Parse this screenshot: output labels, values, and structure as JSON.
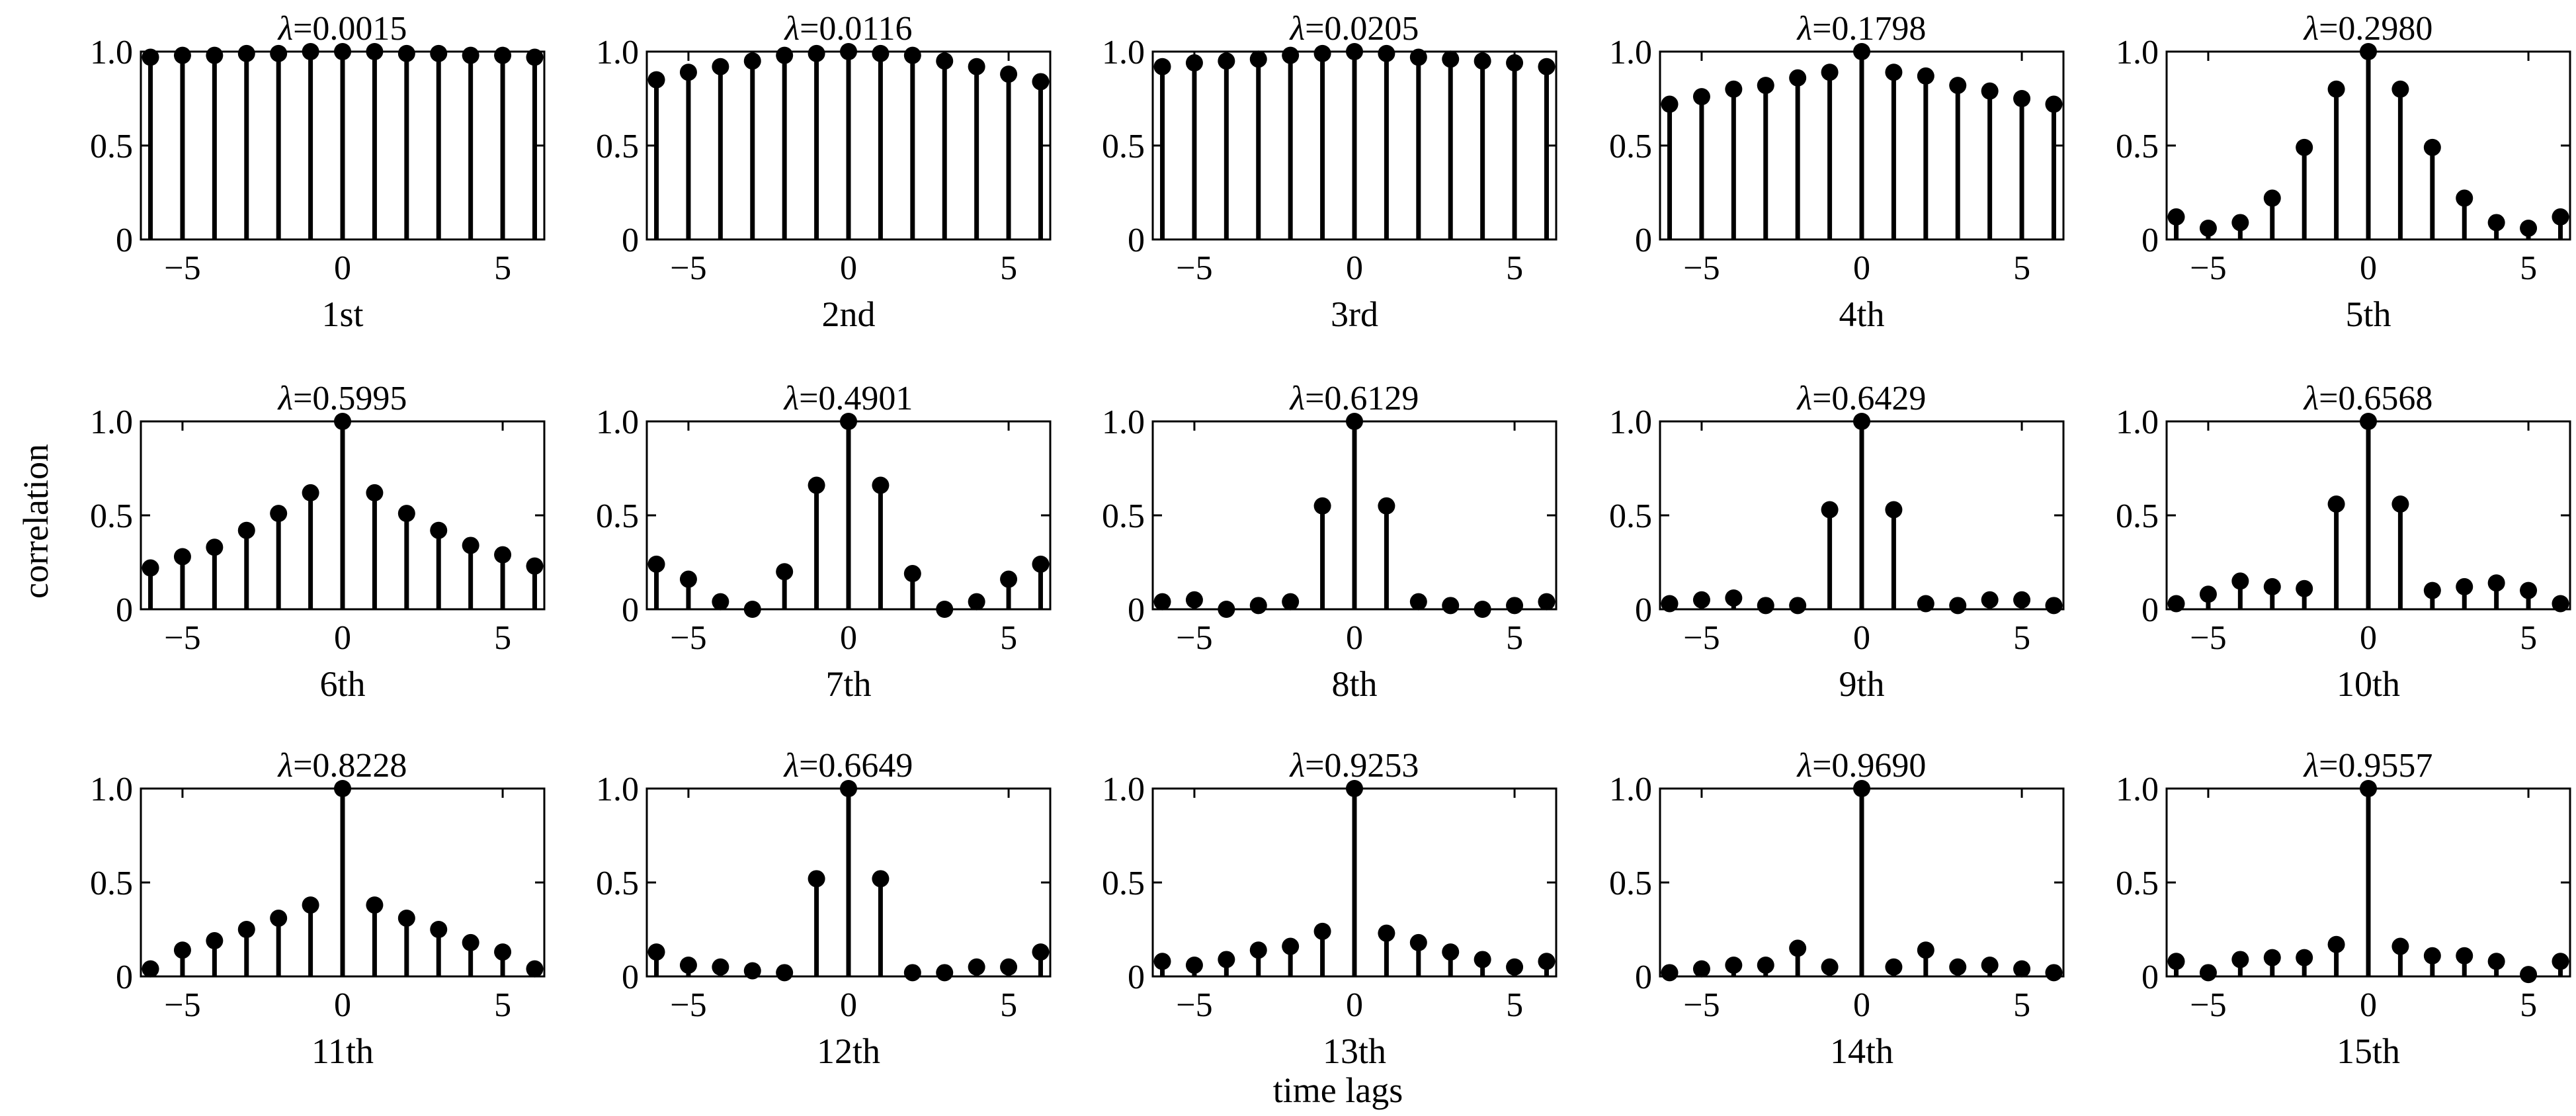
{
  "figure": {
    "ylabel": "correlation",
    "xlabel": "time lags"
  },
  "chart_data": [
    {
      "type": "stem",
      "title_symbol": "λ",
      "title_value": "=0.0015",
      "xlabel": "1st",
      "x": [
        -6,
        -5,
        -4,
        -3,
        -2,
        -1,
        0,
        1,
        2,
        3,
        4,
        5,
        6
      ],
      "values": [
        0.97,
        0.98,
        0.98,
        0.99,
        0.99,
        1.0,
        1.0,
        1.0,
        0.99,
        0.99,
        0.98,
        0.98,
        0.97
      ],
      "xlim": [
        -6.3,
        6.3
      ],
      "ylim": [
        0,
        1
      ],
      "xticks": [
        "−5",
        "0",
        "5"
      ],
      "yticks": [
        "0",
        "0.5",
        "1.0"
      ]
    },
    {
      "type": "stem",
      "title_symbol": "λ",
      "title_value": "=0.0116",
      "xlabel": "2nd",
      "x": [
        -6,
        -5,
        -4,
        -3,
        -2,
        -1,
        0,
        1,
        2,
        3,
        4,
        5,
        6
      ],
      "values": [
        0.85,
        0.89,
        0.92,
        0.95,
        0.98,
        0.99,
        1.0,
        0.99,
        0.98,
        0.95,
        0.92,
        0.88,
        0.84
      ],
      "xlim": [
        -6.3,
        6.3
      ],
      "ylim": [
        0,
        1
      ],
      "xticks": [
        "−5",
        "0",
        "5"
      ],
      "yticks": [
        "0",
        "0.5",
        "1.0"
      ]
    },
    {
      "type": "stem",
      "title_symbol": "λ",
      "title_value": "=0.0205",
      "xlabel": "3rd",
      "x": [
        -6,
        -5,
        -4,
        -3,
        -2,
        -1,
        0,
        1,
        2,
        3,
        4,
        5,
        6
      ],
      "values": [
        0.92,
        0.94,
        0.95,
        0.96,
        0.98,
        0.99,
        1.0,
        0.99,
        0.97,
        0.96,
        0.95,
        0.94,
        0.92
      ],
      "xlim": [
        -6.3,
        6.3
      ],
      "ylim": [
        0,
        1
      ],
      "xticks": [
        "−5",
        "0",
        "5"
      ],
      "yticks": [
        "0",
        "0.5",
        "1.0"
      ]
    },
    {
      "type": "stem",
      "title_symbol": "λ",
      "title_value": "=0.1798",
      "xlabel": "4th",
      "x": [
        -6,
        -5,
        -4,
        -3,
        -2,
        -1,
        0,
        1,
        2,
        3,
        4,
        5,
        6
      ],
      "values": [
        0.72,
        0.76,
        0.8,
        0.82,
        0.86,
        0.89,
        1.0,
        0.89,
        0.87,
        0.82,
        0.79,
        0.75,
        0.72
      ],
      "xlim": [
        -6.3,
        6.3
      ],
      "ylim": [
        0,
        1
      ],
      "xticks": [
        "−5",
        "0",
        "5"
      ],
      "yticks": [
        "0",
        "0.5",
        "1.0"
      ]
    },
    {
      "type": "stem",
      "title_symbol": "λ",
      "title_value": "=0.2980",
      "xlabel": "5th",
      "x": [
        -6,
        -5,
        -4,
        -3,
        -2,
        -1,
        0,
        1,
        2,
        3,
        4,
        5,
        6
      ],
      "values": [
        0.12,
        0.06,
        0.09,
        0.22,
        0.49,
        0.8,
        1.0,
        0.8,
        0.49,
        0.22,
        0.09,
        0.06,
        0.12
      ],
      "xlim": [
        -6.3,
        6.3
      ],
      "ylim": [
        0,
        1
      ],
      "xticks": [
        "−5",
        "0",
        "5"
      ],
      "yticks": [
        "0",
        "0.5",
        "1.0"
      ]
    },
    {
      "type": "stem",
      "title_symbol": "λ",
      "title_value": "=0.5995",
      "xlabel": "6th",
      "x": [
        -6,
        -5,
        -4,
        -3,
        -2,
        -1,
        0,
        1,
        2,
        3,
        4,
        5,
        6
      ],
      "values": [
        0.22,
        0.28,
        0.33,
        0.42,
        0.51,
        0.62,
        1.0,
        0.62,
        0.51,
        0.42,
        0.34,
        0.29,
        0.23
      ],
      "xlim": [
        -6.3,
        6.3
      ],
      "ylim": [
        0,
        1
      ],
      "xticks": [
        "−5",
        "0",
        "5"
      ],
      "yticks": [
        "0",
        "0.5",
        "1.0"
      ]
    },
    {
      "type": "stem",
      "title_symbol": "λ",
      "title_value": "=0.4901",
      "xlabel": "7th",
      "x": [
        -6,
        -5,
        -4,
        -3,
        -2,
        -1,
        0,
        1,
        2,
        3,
        4,
        5,
        6
      ],
      "values": [
        0.24,
        0.16,
        0.04,
        0.0,
        0.2,
        0.66,
        1.0,
        0.66,
        0.19,
        0.0,
        0.04,
        0.16,
        0.24
      ],
      "xlim": [
        -6.3,
        6.3
      ],
      "ylim": [
        0,
        1
      ],
      "xticks": [
        "−5",
        "0",
        "5"
      ],
      "yticks": [
        "0",
        "0.5",
        "1.0"
      ]
    },
    {
      "type": "stem",
      "title_symbol": "λ",
      "title_value": "=0.6129",
      "xlabel": "8th",
      "x": [
        -6,
        -5,
        -4,
        -3,
        -2,
        -1,
        0,
        1,
        2,
        3,
        4,
        5,
        6
      ],
      "values": [
        0.04,
        0.05,
        0.0,
        0.02,
        0.04,
        0.55,
        1.0,
        0.55,
        0.04,
        0.02,
        0.0,
        0.02,
        0.04
      ],
      "xlim": [
        -6.3,
        6.3
      ],
      "ylim": [
        0,
        1
      ],
      "xticks": [
        "−5",
        "0",
        "5"
      ],
      "yticks": [
        "0",
        "0.5",
        "1.0"
      ]
    },
    {
      "type": "stem",
      "title_symbol": "λ",
      "title_value": "=0.6429",
      "xlabel": "9th",
      "x": [
        -6,
        -5,
        -4,
        -3,
        -2,
        -1,
        0,
        1,
        2,
        3,
        4,
        5,
        6
      ],
      "values": [
        0.03,
        0.05,
        0.06,
        0.02,
        0.02,
        0.53,
        1.0,
        0.53,
        0.03,
        0.02,
        0.05,
        0.05,
        0.02
      ],
      "xlim": [
        -6.3,
        6.3
      ],
      "ylim": [
        0,
        1
      ],
      "xticks": [
        "−5",
        "0",
        "5"
      ],
      "yticks": [
        "0",
        "0.5",
        "1.0"
      ]
    },
    {
      "type": "stem",
      "title_symbol": "λ",
      "title_value": "=0.6568",
      "xlabel": "10th",
      "x": [
        -6,
        -5,
        -4,
        -3,
        -2,
        -1,
        0,
        1,
        2,
        3,
        4,
        5,
        6
      ],
      "values": [
        0.03,
        0.08,
        0.15,
        0.12,
        0.11,
        0.56,
        1.0,
        0.56,
        0.1,
        0.12,
        0.14,
        0.1,
        0.03
      ],
      "xlim": [
        -6.3,
        6.3
      ],
      "ylim": [
        0,
        1
      ],
      "xticks": [
        "−5",
        "0",
        "5"
      ],
      "yticks": [
        "0",
        "0.5",
        "1.0"
      ]
    },
    {
      "type": "stem",
      "title_symbol": "λ",
      "title_value": "=0.8228",
      "xlabel": "11th",
      "x": [
        -6,
        -5,
        -4,
        -3,
        -2,
        -1,
        0,
        1,
        2,
        3,
        4,
        5,
        6
      ],
      "values": [
        0.04,
        0.14,
        0.19,
        0.25,
        0.31,
        0.38,
        1.0,
        0.38,
        0.31,
        0.25,
        0.18,
        0.13,
        0.04
      ],
      "xlim": [
        -6.3,
        6.3
      ],
      "ylim": [
        0,
        1
      ],
      "xticks": [
        "−5",
        "0",
        "5"
      ],
      "yticks": [
        "0",
        "0.5",
        "1.0"
      ]
    },
    {
      "type": "stem",
      "title_symbol": "λ",
      "title_value": "=0.6649",
      "xlabel": "12th",
      "x": [
        -6,
        -5,
        -4,
        -3,
        -2,
        -1,
        0,
        1,
        2,
        3,
        4,
        5,
        6
      ],
      "values": [
        0.13,
        0.06,
        0.05,
        0.03,
        0.02,
        0.52,
        1.0,
        0.52,
        0.02,
        0.02,
        0.05,
        0.05,
        0.13
      ],
      "xlim": [
        -6.3,
        6.3
      ],
      "ylim": [
        0,
        1
      ],
      "xticks": [
        "−5",
        "0",
        "5"
      ],
      "yticks": [
        "0",
        "0.5",
        "1.0"
      ]
    },
    {
      "type": "stem",
      "title_symbol": "λ",
      "title_value": "=0.9253",
      "xlabel": "13th",
      "x": [
        -6,
        -5,
        -4,
        -3,
        -2,
        -1,
        0,
        1,
        2,
        3,
        4,
        5,
        6
      ],
      "values": [
        0.08,
        0.06,
        0.09,
        0.14,
        0.16,
        0.24,
        1.0,
        0.23,
        0.18,
        0.13,
        0.09,
        0.05,
        0.08
      ],
      "xlim": [
        -6.3,
        6.3
      ],
      "ylim": [
        0,
        1
      ],
      "xticks": [
        "−5",
        "0",
        "5"
      ],
      "yticks": [
        "0",
        "0.5",
        "1.0"
      ]
    },
    {
      "type": "stem",
      "title_symbol": "λ",
      "title_value": "=0.9690",
      "xlabel": "14th",
      "x": [
        -6,
        -5,
        -4,
        -3,
        -2,
        -1,
        0,
        1,
        2,
        3,
        4,
        5,
        6
      ],
      "values": [
        0.02,
        0.04,
        0.06,
        0.06,
        0.15,
        0.05,
        1.0,
        0.05,
        0.14,
        0.05,
        0.06,
        0.04,
        0.02
      ],
      "xlim": [
        -6.3,
        6.3
      ],
      "ylim": [
        0,
        1
      ],
      "xticks": [
        "−5",
        "0",
        "5"
      ],
      "yticks": [
        "0",
        "0.5",
        "1.0"
      ]
    },
    {
      "type": "stem",
      "title_symbol": "λ",
      "title_value": "=0.9557",
      "xlabel": "15th",
      "x": [
        -6,
        -5,
        -4,
        -3,
        -2,
        -1,
        0,
        1,
        2,
        3,
        4,
        5,
        6
      ],
      "values": [
        0.08,
        0.02,
        0.09,
        0.1,
        0.1,
        0.17,
        1.0,
        0.16,
        0.11,
        0.11,
        0.08,
        0.01,
        0.08
      ],
      "xlim": [
        -6.3,
        6.3
      ],
      "ylim": [
        0,
        1
      ],
      "xticks": [
        "−5",
        "0",
        "5"
      ],
      "yticks": [
        "0",
        "0.5",
        "1.0"
      ]
    }
  ]
}
